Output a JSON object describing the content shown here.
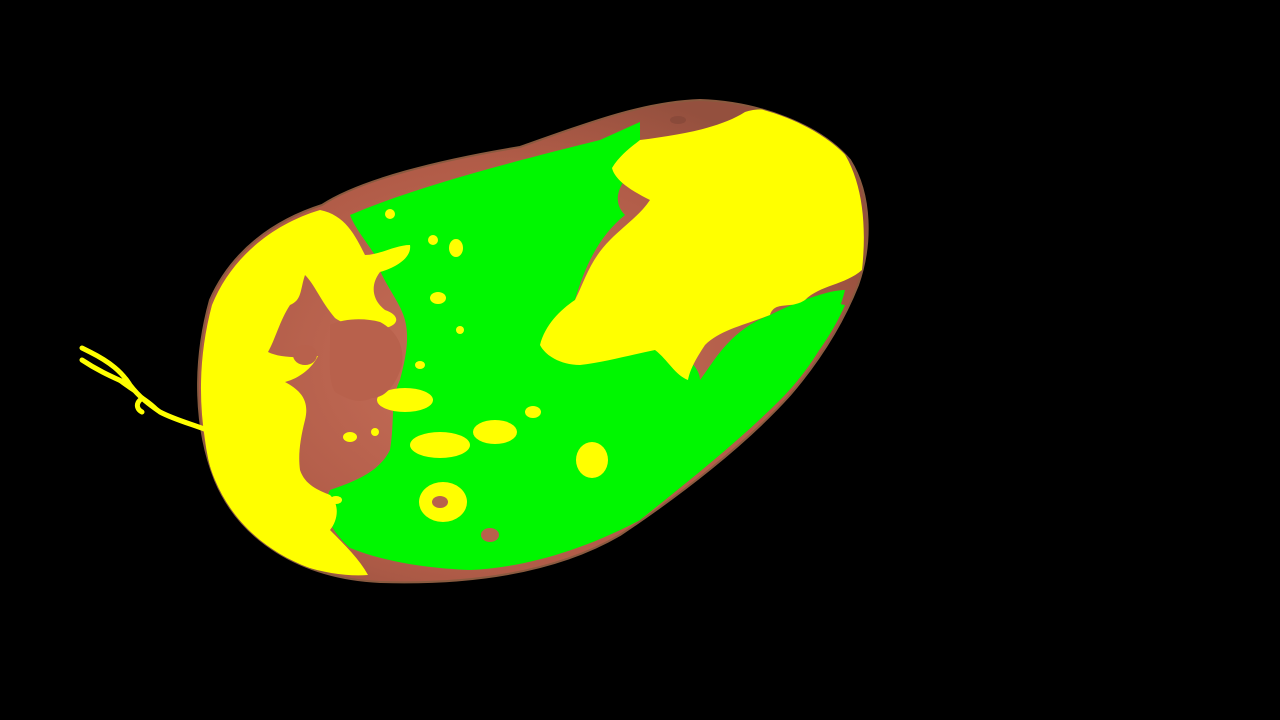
{
  "image": {
    "subject": "segmented-potato-tuber",
    "background_color": "#000000"
  },
  "segmentation": {
    "classes": [
      {
        "name": "skin",
        "color": "#b8614c"
      },
      {
        "name": "green-region",
        "color": "#00f700"
      },
      {
        "name": "yellow-region",
        "color": "#ffff00"
      },
      {
        "name": "rim",
        "color": "#8a5a3f"
      }
    ]
  }
}
